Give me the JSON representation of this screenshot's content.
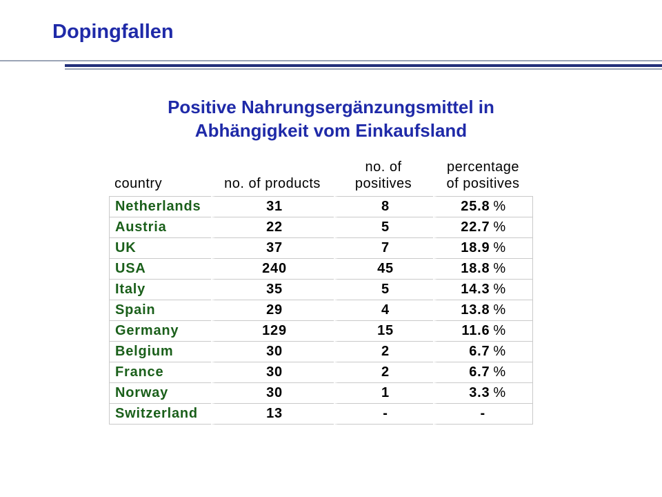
{
  "slide": {
    "title": "Dopingfallen",
    "subtitle_line1": "Positive Nahrungsergänzungsmittel in",
    "subtitle_line2": "Abhängigkeit vom Einkaufsland"
  },
  "table": {
    "headers": {
      "country": "country",
      "products": "no. of products",
      "positives_line1": "no. of",
      "positives_line2": "positives",
      "percentage_line1": "percentage",
      "percentage_line2": "of positives"
    },
    "percent_sign": "%",
    "rows": [
      {
        "country": "Netherlands",
        "products": "31",
        "positives": "8",
        "percentage": "25.8"
      },
      {
        "country": "Austria",
        "products": "22",
        "positives": "5",
        "percentage": "22.7"
      },
      {
        "country": "UK",
        "products": "37",
        "positives": "7",
        "percentage": "18.9"
      },
      {
        "country": "USA",
        "products": "240",
        "positives": "45",
        "percentage": "18.8"
      },
      {
        "country": "Italy",
        "products": "35",
        "positives": "5",
        "percentage": "14.3"
      },
      {
        "country": "Spain",
        "products": "29",
        "positives": "4",
        "percentage": "13.8"
      },
      {
        "country": "Germany",
        "products": "129",
        "positives": "15",
        "percentage": "11.6"
      },
      {
        "country": "Belgium",
        "products": "30",
        "positives": "2",
        "percentage": "6.7"
      },
      {
        "country": "France",
        "products": "30",
        "positives": "2",
        "percentage": "6.7"
      },
      {
        "country": "Norway",
        "products": "30",
        "positives": "1",
        "percentage": "3.3"
      },
      {
        "country": "Switzerland",
        "products": "13",
        "positives": "-",
        "percentage": "-"
      }
    ]
  }
}
